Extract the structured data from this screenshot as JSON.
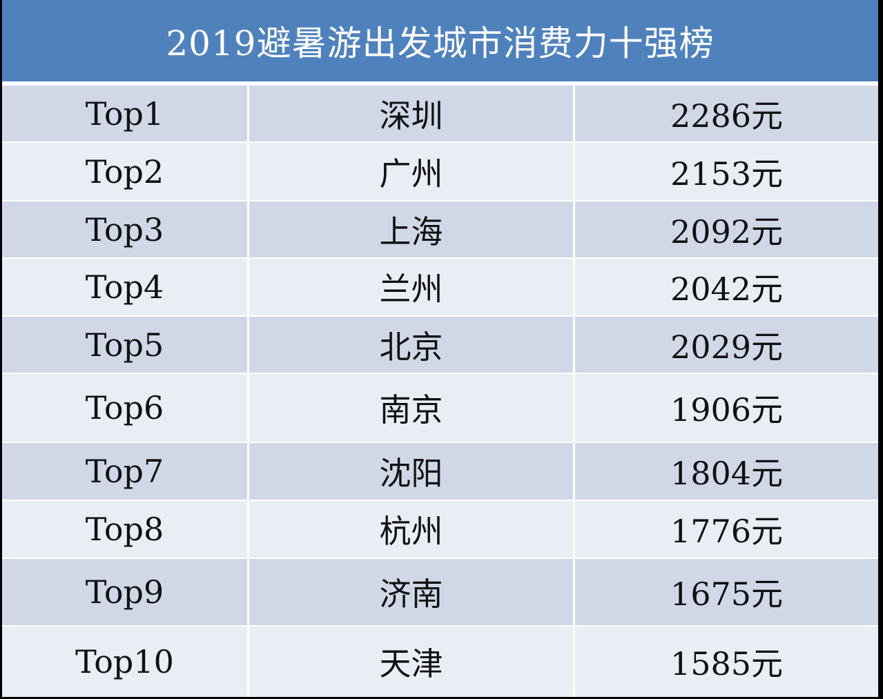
{
  "title": "2019避暑游出发城市消费力十强榜",
  "colors": {
    "header": "#4f81bd",
    "row_odd": "#d0d8e8",
    "row_even": "#e9edf4"
  },
  "rows": [
    {
      "rank": "Top1",
      "city": "深圳",
      "amount": "2286元"
    },
    {
      "rank": "Top2",
      "city": "广州",
      "amount": "2153元"
    },
    {
      "rank": "Top3",
      "city": "上海",
      "amount": "2092元"
    },
    {
      "rank": "Top4",
      "city": "兰州",
      "amount": "2042元"
    },
    {
      "rank": "Top5",
      "city": "北京",
      "amount": "2029元"
    },
    {
      "rank": "Top6",
      "city": "南京",
      "amount": "1906元"
    },
    {
      "rank": "Top7",
      "city": "沈阳",
      "amount": "1804元"
    },
    {
      "rank": "Top8",
      "city": "杭州",
      "amount": "1776元"
    },
    {
      "rank": "Top9",
      "city": "济南",
      "amount": "1675元"
    },
    {
      "rank": "Top10",
      "city": "天津",
      "amount": "1585元"
    }
  ]
}
